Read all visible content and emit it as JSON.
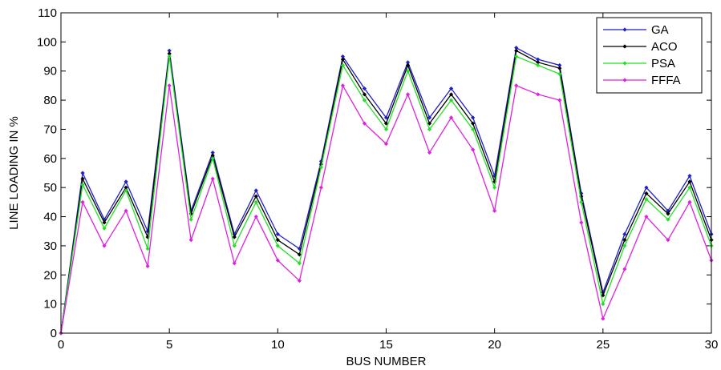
{
  "chart_data": {
    "type": "line",
    "xlabel": "BUS NUMBER",
    "ylabel": "LINE LOADING IN %",
    "xlim": [
      0,
      30
    ],
    "ylim": [
      0,
      110
    ],
    "xticks": [
      0,
      5,
      10,
      15,
      20,
      25,
      30
    ],
    "yticks": [
      0,
      10,
      20,
      30,
      40,
      50,
      60,
      70,
      80,
      90,
      100,
      110
    ],
    "grid": false,
    "legend_position": "top-right",
    "x": [
      0,
      1,
      2,
      3,
      4,
      5,
      6,
      7,
      8,
      9,
      10,
      11,
      12,
      13,
      14,
      15,
      16,
      17,
      18,
      19,
      20,
      21,
      22,
      23,
      24,
      25,
      26,
      27,
      28,
      29,
      30
    ],
    "series": [
      {
        "name": "GA",
        "color": "#1f1fcc",
        "values": [
          0,
          55,
          39,
          52,
          35,
          97,
          42,
          62,
          34,
          49,
          34,
          29,
          59,
          95,
          84,
          74,
          93,
          74,
          84,
          74,
          54,
          98,
          94,
          92,
          48,
          14,
          34,
          50,
          42,
          54,
          34
        ]
      },
      {
        "name": "ACO",
        "color": "#000000",
        "values": [
          0,
          53,
          38,
          50,
          33,
          96,
          41,
          61,
          33,
          47,
          32,
          27,
          58,
          94,
          82,
          72,
          92,
          72,
          82,
          72,
          52,
          97,
          93,
          91,
          47,
          13,
          32,
          48,
          41,
          52,
          32
        ]
      },
      {
        "name": "PSA",
        "color": "#22e022",
        "values": [
          0,
          51,
          36,
          49,
          29,
          95,
          39,
          60,
          30,
          45,
          30,
          24,
          57,
          92,
          80,
          70,
          90,
          70,
          80,
          70,
          50,
          95,
          92,
          89,
          45,
          10,
          30,
          46,
          39,
          50,
          30
        ]
      },
      {
        "name": "FFFA",
        "color": "#e020e0",
        "values": [
          0,
          45,
          30,
          42,
          23,
          85,
          32,
          53,
          24,
          40,
          25,
          18,
          50,
          85,
          72,
          65,
          82,
          62,
          74,
          63,
          42,
          85,
          82,
          80,
          38,
          5,
          22,
          40,
          32,
          45,
          25
        ]
      }
    ]
  }
}
